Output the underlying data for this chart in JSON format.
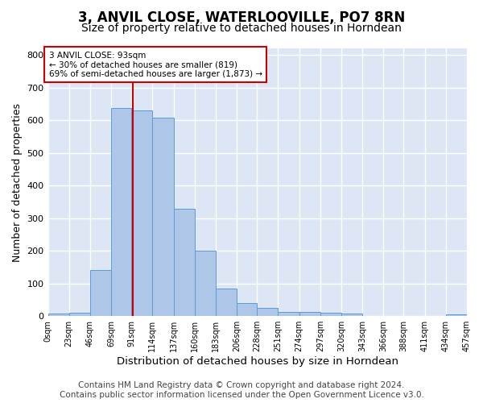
{
  "title": "3, ANVIL CLOSE, WATERLOOVILLE, PO7 8RN",
  "subtitle": "Size of property relative to detached houses in Horndean",
  "xlabel": "Distribution of detached houses by size in Horndean",
  "ylabel": "Number of detached properties",
  "bin_labels": [
    "0sqm",
    "23sqm",
    "46sqm",
    "69sqm",
    "91sqm",
    "114sqm",
    "137sqm",
    "160sqm",
    "183sqm",
    "206sqm",
    "228sqm",
    "251sqm",
    "274sqm",
    "297sqm",
    "320sqm",
    "343sqm",
    "366sqm",
    "388sqm",
    "411sqm",
    "434sqm",
    "457sqm"
  ],
  "bar_heights": [
    7,
    10,
    140,
    638,
    630,
    608,
    330,
    200,
    85,
    40,
    25,
    12,
    12,
    10,
    9,
    0,
    0,
    0,
    0,
    5
  ],
  "bin_edges": [
    0,
    23,
    46,
    69,
    91,
    114,
    137,
    160,
    183,
    206,
    228,
    251,
    274,
    297,
    320,
    343,
    366,
    388,
    411,
    434,
    457
  ],
  "property_size": 93,
  "vline_color": "#cc0000",
  "bar_color": "#aec6e8",
  "bar_edge_color": "#5b9bd5",
  "annotation_text": "3 ANVIL CLOSE: 93sqm\n← 30% of detached houses are smaller (819)\n69% of semi-detached houses are larger (1,873) →",
  "annotation_box_color": "#ffffff",
  "annotation_box_edge": "#cc0000",
  "ylim": [
    0,
    820
  ],
  "yticks": [
    0,
    100,
    200,
    300,
    400,
    500,
    600,
    700,
    800
  ],
  "background_color": "#dce6f5",
  "grid_color": "#ffffff",
  "footer_text": "Contains HM Land Registry data © Crown copyright and database right 2024.\nContains public sector information licensed under the Open Government Licence v3.0.",
  "title_fontsize": 12,
  "subtitle_fontsize": 10,
  "xlabel_fontsize": 9.5,
  "ylabel_fontsize": 9,
  "footer_fontsize": 7.5
}
